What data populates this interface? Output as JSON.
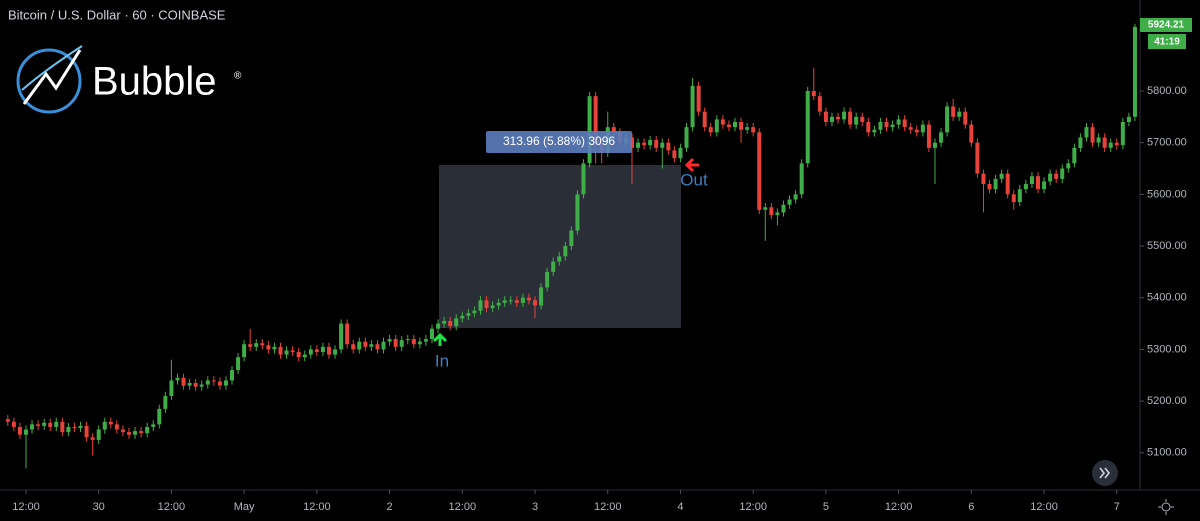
{
  "header": {
    "symbol": "Bitcoin / U.S. Dollar · 60 · COINBASE"
  },
  "logo": {
    "text": "Bubble",
    "mark": "®"
  },
  "chart_data": {
    "type": "candlestick",
    "categories": [
      null,
      null,
      null,
      "12:00",
      null,
      null,
      null,
      null,
      null,
      null,
      null,
      null,
      null,
      null,
      null,
      "30",
      null,
      null,
      null,
      null,
      null,
      null,
      null,
      null,
      null,
      null,
      null,
      "12:00",
      null,
      null,
      null,
      null,
      null,
      null,
      null,
      null,
      null,
      null,
      null,
      "May",
      null,
      null,
      null,
      null,
      null,
      null,
      null,
      null,
      null,
      null,
      null,
      "12:00",
      null,
      null,
      null,
      null,
      null,
      null,
      null,
      null,
      null,
      null,
      null,
      "2",
      null,
      null,
      null,
      null,
      null,
      null,
      null,
      null,
      null,
      null,
      null,
      "12:00",
      null,
      null,
      null,
      null,
      null,
      null,
      null,
      null,
      null,
      null,
      null,
      "3",
      null,
      null,
      null,
      null,
      null,
      null,
      null,
      null,
      null,
      null,
      null,
      "12:00",
      null,
      null,
      null,
      null,
      null,
      null,
      null,
      null,
      null,
      null,
      null,
      "4",
      null,
      null,
      null,
      null,
      null,
      null,
      null,
      null,
      null,
      null,
      null,
      "12:00",
      null,
      null,
      null,
      null,
      null,
      null,
      null,
      null,
      null,
      null,
      null,
      "5",
      null,
      null,
      null,
      null,
      null,
      null,
      null,
      null,
      null,
      null,
      null,
      "12:00",
      null,
      null,
      null,
      null,
      null,
      null,
      null,
      null,
      null,
      null,
      null,
      "6",
      null,
      null,
      null,
      null,
      null,
      null,
      null,
      null,
      null,
      null,
      null,
      "12:00",
      null,
      null,
      null,
      null,
      null,
      null,
      null,
      null,
      null,
      null,
      null,
      "7",
      null,
      null,
      null
    ],
    "open": [
      5165,
      5160,
      5150,
      5135,
      5145,
      5155,
      5152,
      5158,
      5150,
      5160,
      5140,
      5150,
      5148,
      5152,
      5130,
      5125,
      5145,
      5160,
      5155,
      5145,
      5140,
      5135,
      5142,
      5138,
      5150,
      5155,
      5185,
      5210,
      5240,
      5245,
      5230,
      5235,
      5228,
      5232,
      5240,
      5238,
      5230,
      5240,
      5260,
      5285,
      5310,
      5305,
      5312,
      5308,
      5300,
      5305,
      5290,
      5298,
      5295,
      5285,
      5290,
      5300,
      5295,
      5305,
      5290,
      5300,
      5350,
      5310,
      5300,
      5315,
      5305,
      5310,
      5300,
      5315,
      5320,
      5305,
      5318,
      5320,
      5310,
      5315,
      5320,
      5340,
      5350,
      5355,
      5345,
      5360,
      5365,
      5370,
      5375,
      5395,
      5380,
      5385,
      5390,
      5395,
      5395,
      5390,
      5400,
      5395,
      5385,
      5420,
      5450,
      5470,
      5480,
      5500,
      5530,
      5600,
      5660,
      5790,
      5700,
      5680,
      5730,
      5720,
      5700,
      5710,
      5690,
      5700,
      5695,
      5705,
      5690,
      5700,
      5685,
      5670,
      5690,
      5730,
      5810,
      5760,
      5730,
      5720,
      5745,
      5735,
      5730,
      5740,
      5725,
      5730,
      5720,
      5570,
      5575,
      5560,
      5565,
      5580,
      5590,
      5600,
      5660,
      5800,
      5790,
      5760,
      5740,
      5750,
      5745,
      5760,
      5735,
      5750,
      5740,
      5720,
      5725,
      5740,
      5730,
      5735,
      5745,
      5730,
      5725,
      5720,
      5735,
      5690,
      5700,
      5720,
      5770,
      5750,
      5760,
      5735,
      5700,
      5640,
      5620,
      5610,
      5630,
      5640,
      5600,
      5585,
      5610,
      5620,
      5635,
      5610,
      5625,
      5640,
      5630,
      5650,
      5660,
      5690,
      5710,
      5730,
      5700,
      5710,
      5690,
      5700,
      5695,
      5740,
      5750
    ],
    "high": [
      5173,
      5168,
      5158,
      5153,
      5163,
      5163,
      5166,
      5166,
      5168,
      5168,
      5158,
      5158,
      5160,
      5160,
      5138,
      5153,
      5168,
      5168,
      5163,
      5153,
      5148,
      5150,
      5150,
      5158,
      5163,
      5193,
      5218,
      5280,
      5253,
      5253,
      5243,
      5243,
      5240,
      5248,
      5248,
      5246,
      5248,
      5268,
      5293,
      5318,
      5340,
      5320,
      5320,
      5316,
      5313,
      5313,
      5306,
      5306,
      5303,
      5298,
      5308,
      5308,
      5313,
      5313,
      5308,
      5358,
      5358,
      5318,
      5323,
      5323,
      5318,
      5318,
      5323,
      5328,
      5328,
      5326,
      5328,
      5328,
      5323,
      5328,
      5348,
      5358,
      5363,
      5363,
      5368,
      5373,
      5378,
      5383,
      5403,
      5403,
      5393,
      5398,
      5403,
      5403,
      5403,
      5408,
      5408,
      5403,
      5428,
      5458,
      5478,
      5488,
      5508,
      5538,
      5608,
      5668,
      5798,
      5798,
      5708,
      5760,
      5738,
      5728,
      5718,
      5718,
      5708,
      5708,
      5713,
      5713,
      5708,
      5708,
      5693,
      5698,
      5738,
      5825,
      5818,
      5768,
      5738,
      5753,
      5753,
      5743,
      5748,
      5748,
      5738,
      5738,
      5728,
      5583,
      5583,
      5573,
      5588,
      5598,
      5608,
      5668,
      5808,
      5845,
      5798,
      5768,
      5758,
      5758,
      5768,
      5768,
      5758,
      5758,
      5748,
      5733,
      5748,
      5748,
      5743,
      5753,
      5753,
      5738,
      5733,
      5743,
      5743,
      5708,
      5728,
      5778,
      5785,
      5768,
      5768,
      5743,
      5708,
      5648,
      5628,
      5638,
      5648,
      5648,
      5608,
      5618,
      5628,
      5643,
      5643,
      5633,
      5648,
      5648,
      5658,
      5668,
      5698,
      5718,
      5738,
      5738,
      5718,
      5718,
      5708,
      5708,
      5748,
      5758,
      5930
    ],
    "low": [
      5152,
      5142,
      5127,
      5070,
      5137,
      5144,
      5144,
      5142,
      5142,
      5132,
      5132,
      5140,
      5140,
      5122,
      5095,
      5117,
      5137,
      5147,
      5137,
      5132,
      5127,
      5127,
      5130,
      5130,
      5142,
      5147,
      5177,
      5202,
      5232,
      5222,
      5222,
      5220,
      5220,
      5224,
      5230,
      5222,
      5222,
      5232,
      5252,
      5277,
      5297,
      5297,
      5300,
      5292,
      5292,
      5282,
      5282,
      5287,
      5277,
      5277,
      5282,
      5287,
      5287,
      5282,
      5282,
      5292,
      5302,
      5292,
      5292,
      5297,
      5297,
      5292,
      5292,
      5307,
      5297,
      5297,
      5310,
      5302,
      5302,
      5307,
      5312,
      5332,
      5342,
      5337,
      5337,
      5352,
      5357,
      5362,
      5367,
      5372,
      5372,
      5377,
      5382,
      5387,
      5382,
      5382,
      5387,
      5360,
      5377,
      5412,
      5442,
      5462,
      5472,
      5492,
      5522,
      5592,
      5652,
      5660,
      5660,
      5672,
      5712,
      5692,
      5692,
      5620,
      5682,
      5687,
      5687,
      5682,
      5650,
      5677,
      5662,
      5662,
      5682,
      5722,
      5752,
      5722,
      5712,
      5712,
      5727,
      5722,
      5722,
      5700,
      5717,
      5712,
      5562,
      5510,
      5552,
      5540,
      5557,
      5572,
      5582,
      5592,
      5652,
      5782,
      5752,
      5732,
      5732,
      5737,
      5737,
      5727,
      5727,
      5732,
      5712,
      5712,
      5717,
      5722,
      5722,
      5727,
      5722,
      5717,
      5712,
      5712,
      5682,
      5620,
      5692,
      5712,
      5742,
      5742,
      5727,
      5692,
      5632,
      5565,
      5602,
      5602,
      5622,
      5592,
      5570,
      5577,
      5602,
      5612,
      5602,
      5602,
      5617,
      5622,
      5622,
      5642,
      5652,
      5682,
      5702,
      5692,
      5692,
      5682,
      5682,
      5687,
      5687,
      5732,
      5742
    ],
    "close": [
      5160,
      5150,
      5135,
      5145,
      5155,
      5152,
      5158,
      5150,
      5160,
      5140,
      5150,
      5148,
      5152,
      5130,
      5125,
      5145,
      5160,
      5155,
      5145,
      5140,
      5135,
      5142,
      5138,
      5150,
      5155,
      5185,
      5210,
      5240,
      5245,
      5230,
      5235,
      5228,
      5232,
      5240,
      5238,
      5230,
      5240,
      5260,
      5285,
      5310,
      5305,
      5312,
      5308,
      5300,
      5305,
      5290,
      5298,
      5295,
      5285,
      5290,
      5300,
      5295,
      5305,
      5290,
      5300,
      5350,
      5310,
      5300,
      5315,
      5305,
      5310,
      5300,
      5315,
      5320,
      5305,
      5318,
      5320,
      5310,
      5315,
      5320,
      5340,
      5350,
      5355,
      5345,
      5360,
      5365,
      5370,
      5375,
      5395,
      5380,
      5385,
      5390,
      5395,
      5395,
      5390,
      5400,
      5395,
      5385,
      5420,
      5450,
      5470,
      5480,
      5500,
      5530,
      5600,
      5660,
      5790,
      5700,
      5680,
      5730,
      5720,
      5700,
      5710,
      5690,
      5700,
      5695,
      5705,
      5690,
      5700,
      5685,
      5670,
      5690,
      5730,
      5810,
      5760,
      5730,
      5720,
      5745,
      5735,
      5730,
      5740,
      5725,
      5730,
      5720,
      5570,
      5575,
      5560,
      5565,
      5580,
      5590,
      5600,
      5660,
      5800,
      5790,
      5760,
      5740,
      5750,
      5745,
      5760,
      5735,
      5750,
      5740,
      5720,
      5725,
      5740,
      5730,
      5735,
      5745,
      5730,
      5725,
      5720,
      5735,
      5690,
      5700,
      5720,
      5770,
      5750,
      5760,
      5735,
      5700,
      5640,
      5620,
      5610,
      5630,
      5640,
      5600,
      5585,
      5610,
      5620,
      5635,
      5610,
      5625,
      5640,
      5630,
      5650,
      5660,
      5690,
      5710,
      5730,
      5700,
      5710,
      5690,
      5700,
      5695,
      5740,
      5750,
      5924
    ],
    "up_color": "#3fae49",
    "down_color": "#e8433a",
    "ylim": [
      5028,
      5976
    ],
    "yticks": [
      {
        "value": 5100,
        "label": "5100.00"
      },
      {
        "value": 5200,
        "label": "5200.00"
      },
      {
        "value": 5300,
        "label": "5300.00"
      },
      {
        "value": 5400,
        "label": "5400.00"
      },
      {
        "value": 5500,
        "label": "5500.00"
      },
      {
        "value": 5600,
        "label": "5600.00"
      },
      {
        "value": 5700,
        "label": "5700.00"
      },
      {
        "value": 5800,
        "label": "5800.00"
      }
    ],
    "price_label": "5924.21",
    "countdown": "41:19",
    "annotations": {
      "measure": "313.96 (5.88%) 3096",
      "entry": "In",
      "exit": "Out"
    }
  }
}
